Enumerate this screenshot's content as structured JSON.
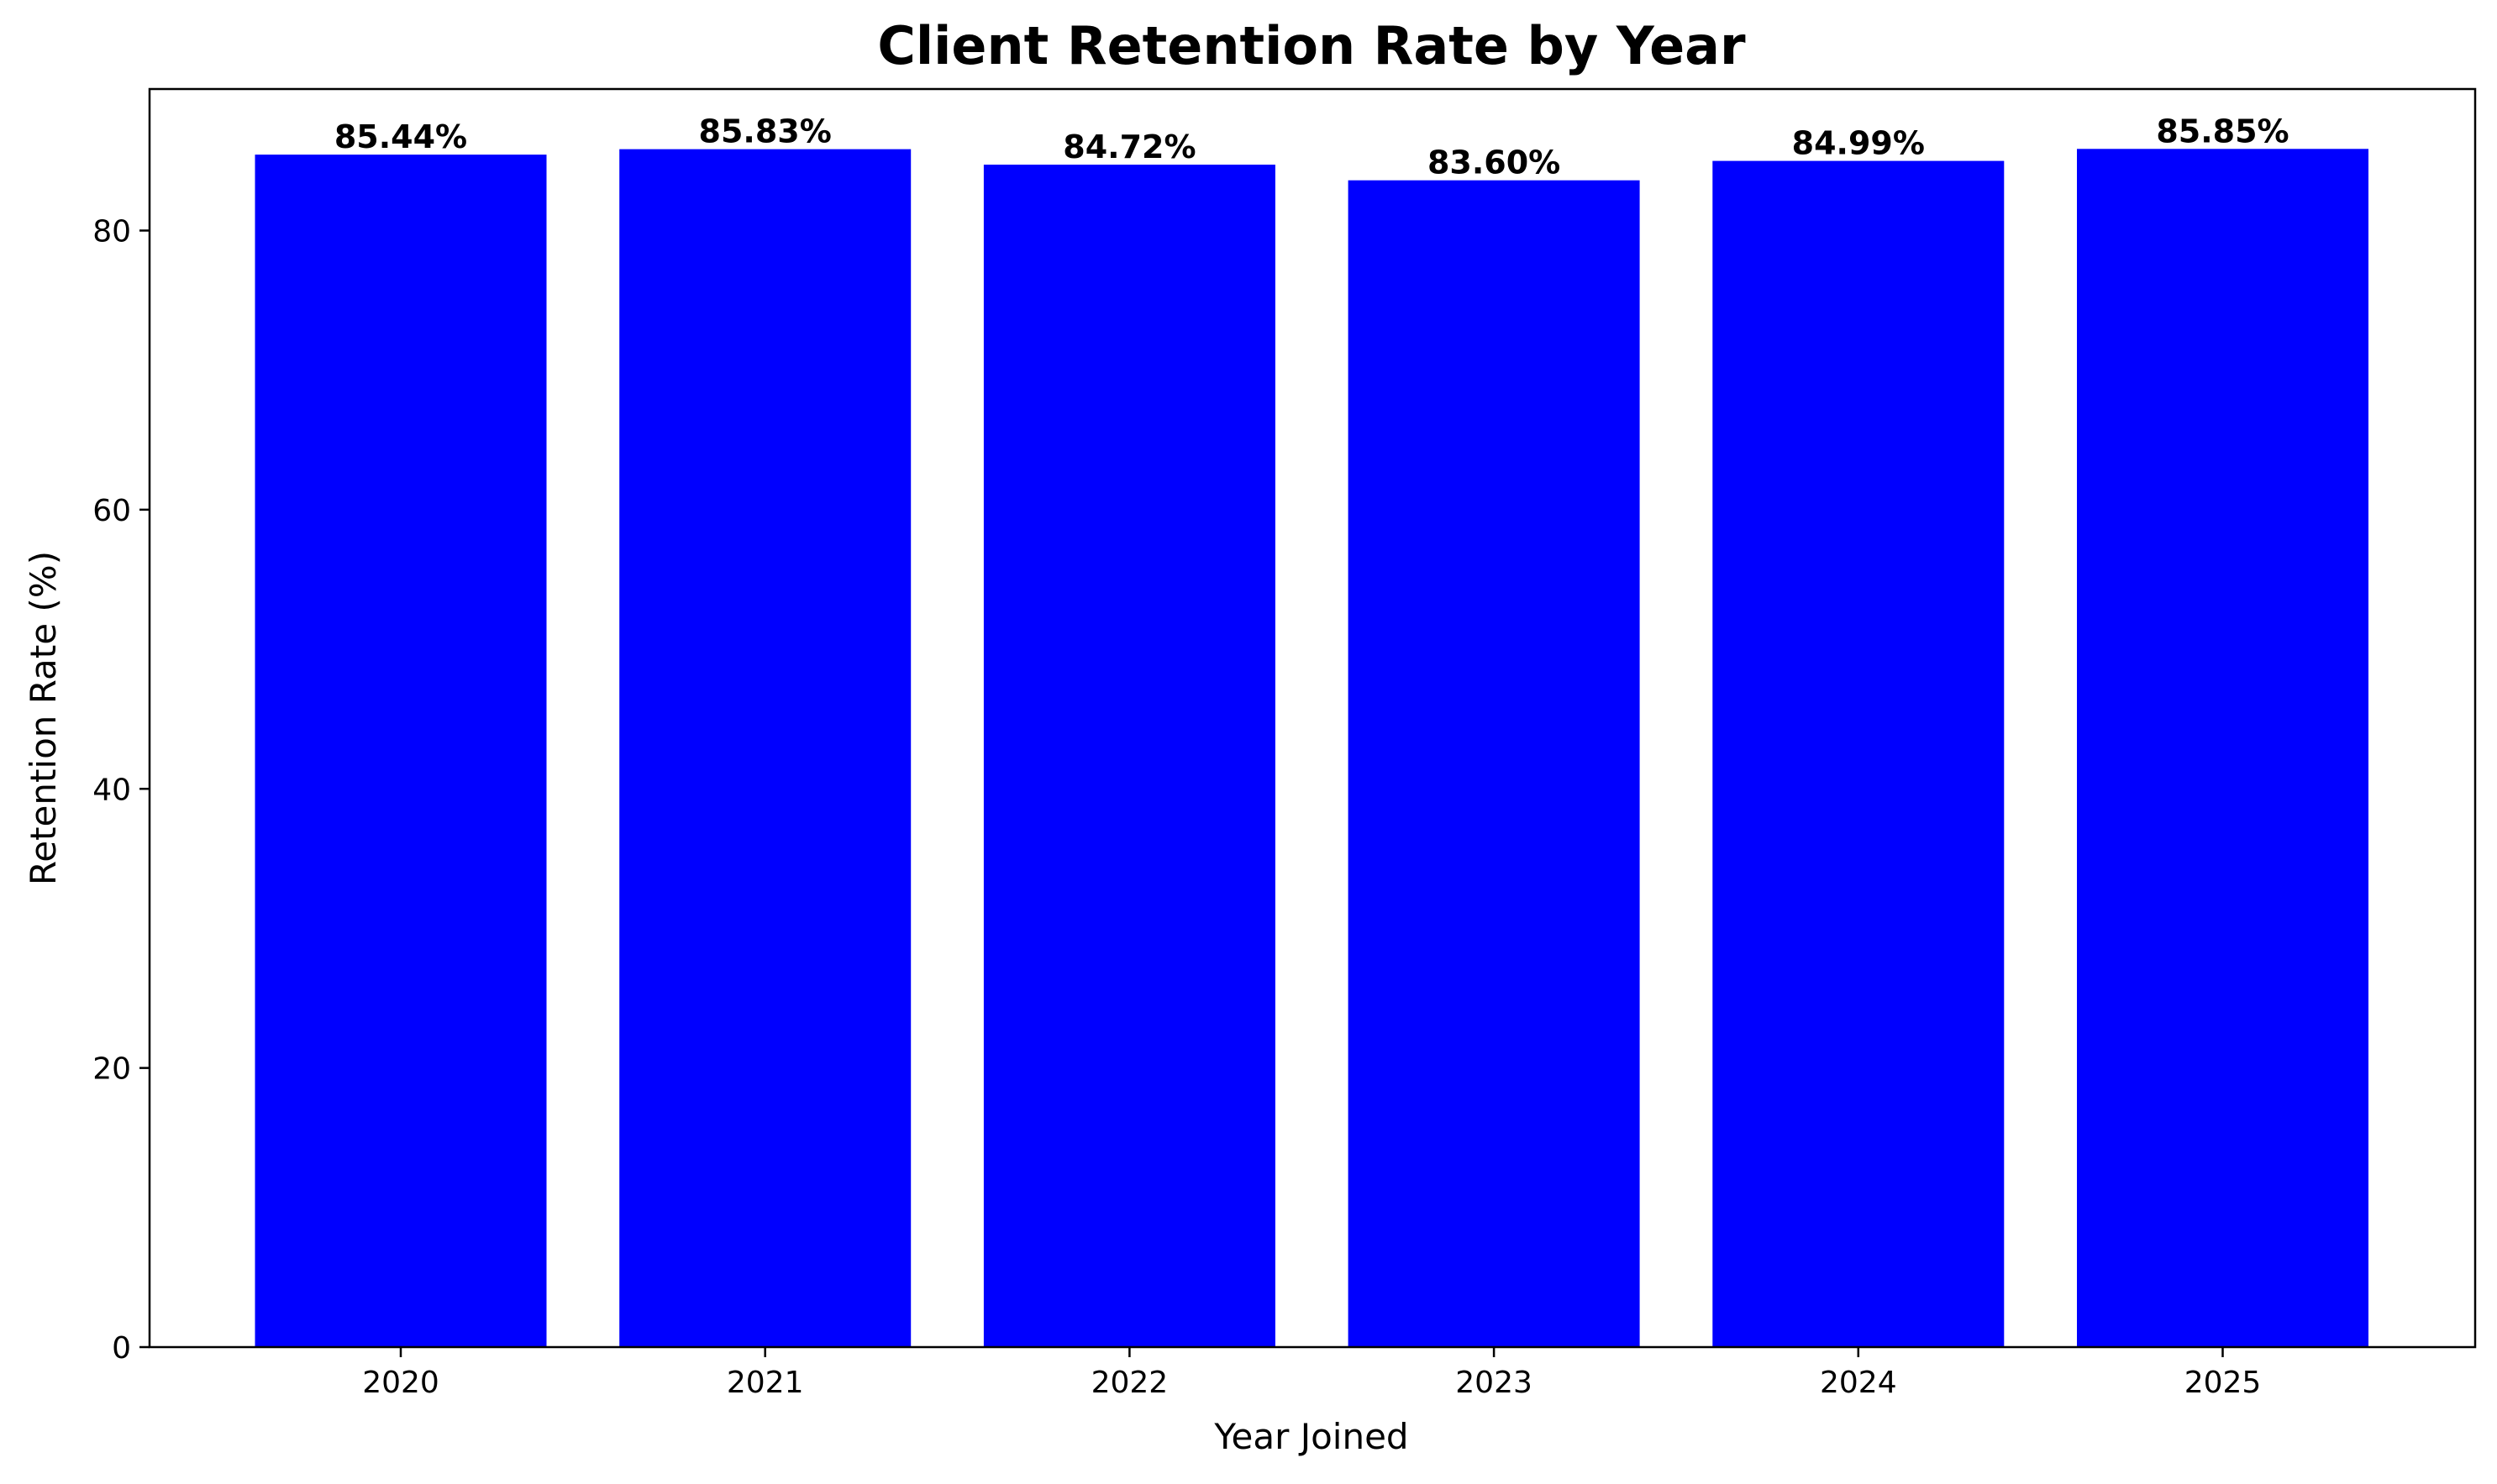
{
  "chart_data": {
    "type": "bar",
    "title": "Client Retention Rate by Year",
    "xlabel": "Year Joined",
    "ylabel": "Retention Rate (%)",
    "categories": [
      "2020",
      "2021",
      "2022",
      "2023",
      "2024",
      "2025"
    ],
    "values": [
      85.44,
      85.83,
      84.72,
      83.6,
      84.99,
      85.85
    ],
    "data_labels": [
      "85.44%",
      "85.83%",
      "84.72%",
      "83.60%",
      "84.99%",
      "85.85%"
    ],
    "ylim": [
      0,
      90.14
    ],
    "yticks": [
      0,
      20,
      40,
      60,
      80
    ],
    "bar_color": "#0000ff",
    "grid": false,
    "legend": "none"
  }
}
